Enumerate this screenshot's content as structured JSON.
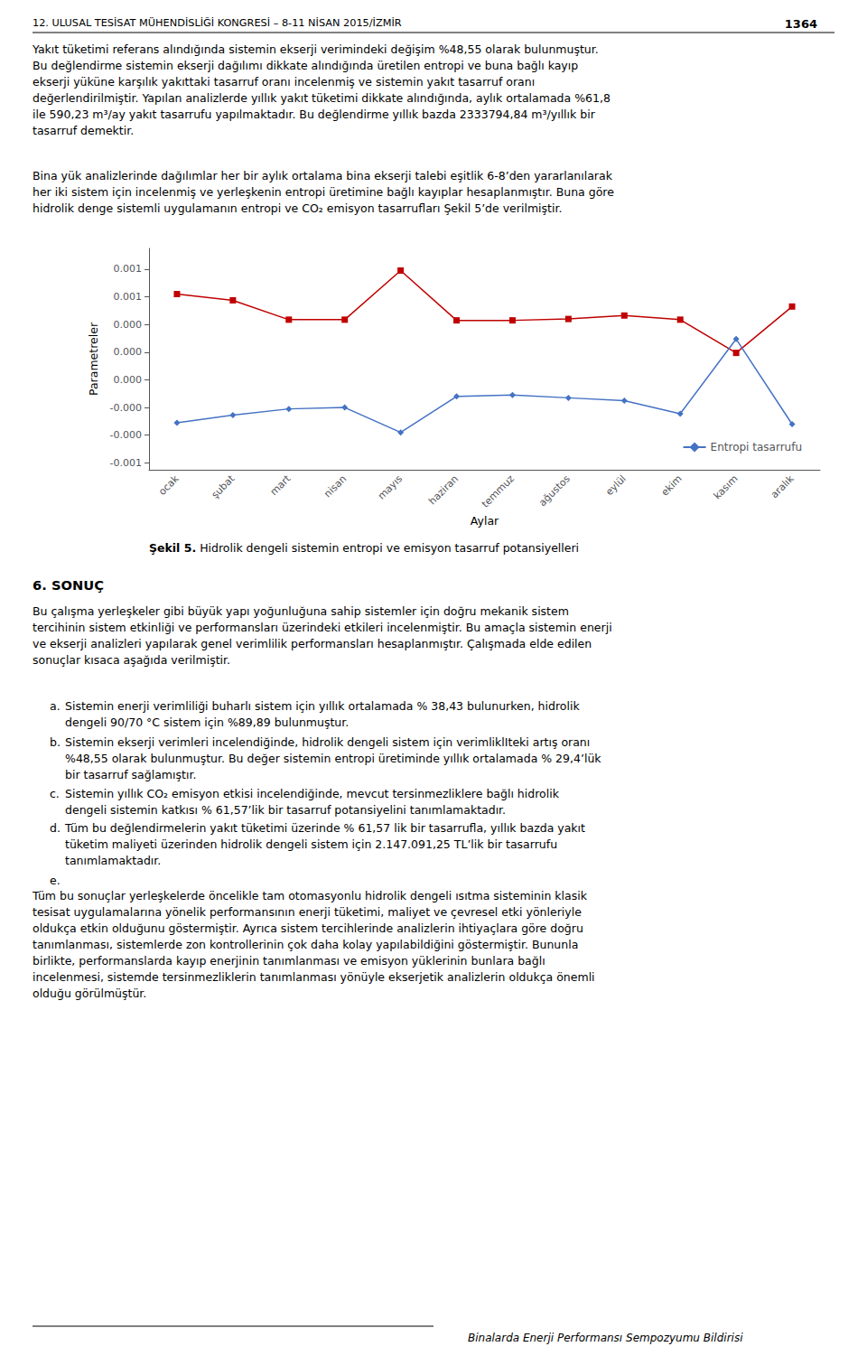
{
  "chart_data": {
    "type": "line",
    "xlabel": "Aylar",
    "ylabel": "Parametreler",
    "categories": [
      "ocak",
      "şubat",
      "mart",
      "nisan",
      "mayıs",
      "haziran",
      "temmuz",
      "ağustos",
      "eylül",
      "ekim",
      "kasım",
      "aralık"
    ],
    "series": [
      {
        "color": "#C00000",
        "marker": "square",
        "values": [
          0.00062,
          0.000575,
          0.000435,
          0.000435,
          0.00079,
          0.00043,
          0.00043,
          0.00044,
          0.000465,
          0.000435,
          0.000195,
          0.00053
        ]
      },
      {
        "name": "Entropi tasarrufu",
        "color": "#4472C4",
        "marker": "diamond",
        "values": [
          -0.00031,
          -0.000255,
          -0.00021,
          -0.0002,
          -0.00038,
          -0.00012,
          -0.00011,
          -0.00013,
          -0.00015,
          -0.000245,
          0.000295,
          -0.00032
        ]
      }
    ],
    "ylim": [
      -0.00065,
      0.00095
    ],
    "yticks": [
      {
        "value": 0.0008,
        "label": "0.001"
      },
      {
        "value": 0.0006,
        "label": "0.001"
      },
      {
        "value": 0.0004,
        "label": "0.000"
      },
      {
        "value": 0.0002,
        "label": "0.000"
      },
      {
        "value": 0.0,
        "label": "0.000"
      },
      {
        "value": -0.0002,
        "label": "-0.000"
      },
      {
        "value": -0.0004,
        "label": "-0.000"
      },
      {
        "value": -0.0006,
        "label": "-0.001"
      }
    ],
    "grid": false,
    "legend": "lower right",
    "annotations": [
      "12. ULUSAL TESİSAT MÜHENDİSLİĞİ KONGRESİ – 8-11 NİSAN 2015/İZMİR",
      "1364",
      "Yakıt tüketimi referans alındığında sistemin ekserji verimindeki değişim %48,55 olarak bulunmuştur.",
      "Bu değlendirme sistemin ekserji dağılımı dikkate alındığında üretilen entropi ve buna bağlı kayıp",
      "ekserji yüküne karşılık yakıttaki tasarruf oranı incelenmiş ve sistemin yakıt tasarruf oranı",
      "değerlendirilmiştir. Yapılan analizlerde yıllık yakıt tüketimi dikkate alındığında, aylık ortalamada %61,8",
      "ile 590,23 m³/ay yakıt tasarrufu yapılmaktadır. Bu değlendirme yıllık bazda 2333794,84 m³/yıllık bir",
      "tasarruf demektir.",
      "Bina yük analizlerinde dağılımlar her bir aylık ortalama bina ekserji talebi eşitlik 6-8’den yararlanılarak",
      "her iki sistem için incelenmiş ve yerleşkenin entropi üretimine bağlı kayıplar hesaplanmıştır. Buna göre",
      "hidrolik denge sistemli uygulamanın entropi ve CO₂ emisyon tasarrufları Şekil 5’de verilmiştir.",
      "Şekil 5.",
      " Hidrolik dengeli sistemin entropi ve emisyon tasarruf potansiyelleri",
      "6. SONUÇ",
      "Bu çalışma yerleşkeler gibi büyük yapı yoğunluğuna sahip sistemler için doğru mekanik sistem",
      "tercihinin sistem etkinliği ve performansları üzerindeki etkileri incelenmiştir. Bu amaçla sistemin enerji",
      "ve ekserji analizleri yapılarak genel verimlilik performansları hesaplanmıştır. Çalışmada elde edilen",
      "sonuçlar kısaca aşağıda verilmiştir.",
      "a.",
      "Sistemin enerji verimliliği buharlı sistem için yıllık ortalamada % 38,43 bulunurken, hidrolik",
      "dengeli 90/70 °C sistem için %89,89 bulunmuştur.",
      "b.",
      "Sistemin ekserji verimleri incelendiğinde, hidrolik dengeli sistem için verimliklIteki artış oranı",
      "%48,55 olarak bulunmuştur. Bu değer sistemin entropi üretiminde yıllık ortalamada % 29,4’lük",
      "bir tasarruf sağlamıştır.",
      "c.",
      "Sistemin yıllık CO₂ emisyon etkisi incelendiğinde, mevcut tersinmezliklere bağlı hidrolik",
      "dengeli sistemin katkısı % 61,57’lik bir tasarruf potansiyelini tanımlamaktadır.",
      "d.",
      "Tüm bu değlendirmelerin yakıt tüketimi üzerinde % 61,57 lik bir tasarrufla, yıllık bazda yakıt",
      "tüketim maliyeti üzerinden hidrolik dengeli sistem için 2.147.091,25 TL’lik bir tasarrufu",
      "tanımlamaktadır.",
      "e.",
      "Tüm bu sonuçlar yerleşkelerde öncelikle tam otomasyonlu hidrolik dengeli ısıtma sisteminin klasik",
      "tesisat uygulamalarına yönelik performansının enerji tüketimi, maliyet ve çevresel etki yönleriyle",
      "oldukça etkin olduğunu göstermiştir. Ayrıca sistem tercihlerinde analizlerin ihtiyaçlara göre doğru",
      "tanımlanması, sistemlerde zon kontrollerinin çok daha kolay yapılabildiğini göstermiştir. Bununla",
      "birlikte, performanslarda kayıp enerjinin tanımlanması ve emisyon yüklerinin bunlara bağlı",
      "incelenmesi, sistemde tersinmezliklerin tanımlanması yönüyle ekserjetik analizlerin oldukça önemli",
      "olduğu görülmüştür.",
      "Binalarda Enerji Performansı Sempozyumu Bildirisi"
    ]
  }
}
